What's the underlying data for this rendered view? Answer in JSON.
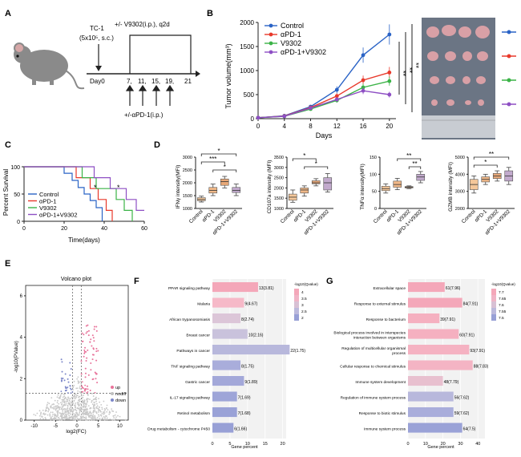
{
  "panels": {
    "A": {
      "label": "A",
      "tc1": "TC-1",
      "dose": "(5x10⁵, s.c.)",
      "treat_v9302": "+/- V9302(i.p.), q2d",
      "day0": "Day0",
      "days": [
        "7,",
        "11,",
        "15,",
        "19,",
        "21"
      ],
      "treat_apd1": "+/-αPD-1(i.p.)"
    },
    "B": {
      "label": "B",
      "ylabel": "Tumor volume(mm³)",
      "xlabel": "Days",
      "sig": [
        "**",
        "**",
        "**"
      ]
    },
    "C": {
      "label": "C",
      "ylabel": "Percent Survival",
      "xlabel": "Time(days)",
      "sig": [
        "*",
        "*"
      ]
    },
    "D": {
      "label": "D",
      "plots": [
        {
          "ylabel": "IFNγ intensity(MFI)",
          "sig": [
            "*",
            "***",
            "*"
          ]
        },
        {
          "ylabel": "CD107a intensity (MFI)",
          "sig": [
            "*",
            "*"
          ]
        },
        {
          "ylabel": "TNFα intensity(MFI)",
          "sig": [
            "**",
            "**"
          ]
        },
        {
          "ylabel": "GZMB intensity (MFI)",
          "sig": [
            "*",
            "**"
          ]
        }
      ],
      "groups": [
        "Control",
        "αPD-1",
        "V9302",
        "αPD-1+V9302"
      ]
    },
    "E": {
      "label": "E",
      "title": "Volcano plot",
      "xlabel": "log2(FC)",
      "ylabel": "-log10(PValue)",
      "legend": [
        "up",
        "nodiff",
        "down"
      ]
    },
    "F": {
      "label": "F",
      "xlabel": "Gene percent",
      "legend_title": "-log10(Qvalue)",
      "legend_ticks": [
        "4",
        "3.5",
        "3",
        "2.5",
        "2"
      ]
    },
    "G": {
      "label": "G",
      "xlabel": "Gene percent",
      "legend_title": "-log10(Qvalue)",
      "legend_ticks": [
        "7.7",
        "7.65",
        "7.6",
        "7.55",
        "7.5"
      ]
    }
  },
  "chart_data": [
    {
      "type": "line",
      "title": "",
      "xlabel": "Days",
      "ylabel": "Tumor volume(mm³)",
      "x": [
        0,
        4,
        8,
        12,
        16,
        20
      ],
      "xlim": [
        0,
        21
      ],
      "ylim": [
        0,
        2000
      ],
      "xticks": [
        0,
        4,
        8,
        12,
        16,
        20
      ],
      "yticks": [
        0,
        500,
        1000,
        1500,
        2000
      ],
      "legend": "top-left",
      "series": [
        {
          "name": "Control",
          "color": "#2a63c6",
          "values": [
            20,
            60,
            250,
            600,
            1320,
            1750
          ]
        },
        {
          "name": "αPD-1",
          "color": "#e8392b",
          "values": [
            20,
            55,
            230,
            470,
            800,
            960
          ]
        },
        {
          "name": "V9302",
          "color": "#3bb347",
          "values": [
            20,
            50,
            200,
            380,
            650,
            780
          ]
        },
        {
          "name": "αPD-1+V9302",
          "color": "#8e4fc4",
          "values": [
            20,
            50,
            220,
            400,
            580,
            500
          ]
        }
      ]
    },
    {
      "type": "line",
      "title": "",
      "xlabel": "Time(days)",
      "ylabel": "Percent Survival",
      "xlim": [
        0,
        60
      ],
      "ylim": [
        0,
        100
      ],
      "xticks": [
        0,
        20,
        40,
        60
      ],
      "yticks": [
        0,
        50,
        100
      ],
      "legend": "bottom-left",
      "series": [
        {
          "name": "Control",
          "color": "#2a63c6",
          "steps": [
            [
              0,
              100
            ],
            [
              20,
              100
            ],
            [
              20,
              88
            ],
            [
              24,
              88
            ],
            [
              24,
              75
            ],
            [
              27,
              75
            ],
            [
              27,
              62
            ],
            [
              30,
              62
            ],
            [
              30,
              50
            ],
            [
              33,
              50
            ],
            [
              33,
              38
            ],
            [
              36,
              38
            ],
            [
              36,
              25
            ],
            [
              39,
              25
            ],
            [
              39,
              0
            ]
          ]
        },
        {
          "name": "αPD-1",
          "color": "#e8392b",
          "steps": [
            [
              0,
              100
            ],
            [
              26,
              100
            ],
            [
              26,
              80
            ],
            [
              33,
              80
            ],
            [
              33,
              60
            ],
            [
              37,
              60
            ],
            [
              37,
              40
            ],
            [
              41,
              40
            ],
            [
              41,
              20
            ],
            [
              44,
              20
            ],
            [
              44,
              0
            ]
          ]
        },
        {
          "name": "V9302",
          "color": "#3bb347",
          "steps": [
            [
              0,
              100
            ],
            [
              29,
              100
            ],
            [
              29,
              80
            ],
            [
              36,
              80
            ],
            [
              36,
              60
            ],
            [
              46,
              60
            ],
            [
              46,
              40
            ],
            [
              50,
              40
            ],
            [
              50,
              20
            ],
            [
              54,
              20
            ],
            [
              54,
              0
            ]
          ]
        },
        {
          "name": "αPD-1+V9302",
          "color": "#8e4fc4",
          "steps": [
            [
              0,
              100
            ],
            [
              35,
              100
            ],
            [
              35,
              80
            ],
            [
              43,
              80
            ],
            [
              43,
              60
            ],
            [
              51,
              60
            ],
            [
              51,
              40
            ],
            [
              56,
              40
            ],
            [
              56,
              20
            ],
            [
              60,
              20
            ]
          ]
        }
      ]
    },
    {
      "type": "box",
      "ylabel": "IFNγ intensity(MFI)",
      "categories": [
        "Control",
        "αPD-1",
        "V9302",
        "αPD-1+V9302"
      ],
      "yticks": [
        1000,
        1500,
        2000,
        2500,
        3000
      ],
      "ylim": [
        1000,
        3000
      ],
      "boxes": [
        [
          1250,
          1300,
          1350,
          1420,
          1480
        ],
        [
          1500,
          1600,
          1700,
          1820,
          1950
        ],
        [
          1800,
          1900,
          2050,
          2150,
          2250
        ],
        [
          1500,
          1620,
          1700,
          1820,
          1950
        ]
      ]
    },
    {
      "type": "box",
      "ylabel": "CD107a intensity (MFI)",
      "categories": [
        "Control",
        "αPD-1",
        "V9302",
        "αPD-1+V9302"
      ],
      "yticks": [
        1000,
        1500,
        2000,
        2500,
        3000,
        3500
      ],
      "ylim": [
        1000,
        3500
      ],
      "boxes": [
        [
          1300,
          1400,
          1550,
          1700,
          1900
        ],
        [
          1600,
          1750,
          1900,
          2000,
          2100
        ],
        [
          2100,
          2200,
          2250,
          2350,
          2450
        ],
        [
          1800,
          1900,
          2250,
          2500,
          2700
        ]
      ]
    },
    {
      "type": "box",
      "ylabel": "TNFα intensity(MFI)",
      "categories": [
        "Control",
        "αPD-1",
        "V9302",
        "αPD-1+V9302"
      ],
      "yticks": [
        0,
        50,
        100,
        150
      ],
      "ylim": [
        0,
        150
      ],
      "boxes": [
        [
          45,
          52,
          58,
          65,
          72
        ],
        [
          55,
          62,
          70,
          80,
          88
        ],
        [
          58,
          60,
          62,
          64,
          66
        ],
        [
          75,
          82,
          92,
          100,
          108
        ]
      ]
    },
    {
      "type": "box",
      "ylabel": "GZMB intensity (MFI)",
      "categories": [
        "Control",
        "αPD-1",
        "V9302",
        "αPD-1+V9302"
      ],
      "yticks": [
        2000,
        3000,
        4000,
        5000
      ],
      "ylim": [
        2000,
        5000
      ],
      "boxes": [
        [
          2900,
          3100,
          3400,
          3700,
          3900
        ],
        [
          3400,
          3550,
          3700,
          3850,
          4000
        ],
        [
          3600,
          3750,
          3900,
          4050,
          4200
        ],
        [
          3400,
          3600,
          3900,
          4200,
          4400
        ]
      ]
    },
    {
      "type": "scatter",
      "title": "Volcano plot",
      "xlabel": "log2(FC)",
      "ylabel": "-log10(PValue)",
      "xticks": [
        -10,
        -5,
        0,
        5,
        10
      ],
      "yticks": [
        0,
        2,
        4,
        6
      ],
      "xlim": [
        -12,
        12
      ],
      "ylim": [
        0,
        6.5
      ],
      "legend": "top-right"
    },
    {
      "type": "bar",
      "orientation": "horizontal",
      "xlabel": "Gene percent",
      "xticks": [
        0,
        5,
        10,
        15,
        20
      ],
      "xlim": [
        0,
        21
      ],
      "categories": [
        "PPAR signaling pathway",
        "Malaria",
        "African trypanosomiasis",
        "Breast cancer",
        "Pathways in cancer",
        "TNF signaling pathway",
        "Gastric cancer",
        "IL-17 signaling pathway",
        "Retinol metabolism",
        "Drug metabolism - cytochrome P450"
      ],
      "values": [
        13,
        9,
        8,
        10,
        22,
        8,
        9,
        7,
        7,
        6
      ],
      "data_labels": [
        "13(3.81)",
        "9(4.67)",
        "8(2.74)",
        "10(2.16)",
        "22(1.75)",
        "8(1.75)",
        "9(1.89)",
        "7(1.69)",
        "7(1.68)",
        "6(1.66)"
      ],
      "colors": [
        "#f4a7b9",
        "#f6b9c8",
        "#dcc6d8",
        "#c9c2dc",
        "#b8b8dc",
        "#a9addb",
        "#a3a8d9",
        "#9ea5d8",
        "#9aa2d7",
        "#98a0d6"
      ]
    },
    {
      "type": "bar",
      "orientation": "horizontal",
      "xlabel": "Gene percent",
      "xticks": [
        0,
        10,
        20,
        30,
        40
      ],
      "xlim": [
        0,
        44
      ],
      "categories": [
        "Extracellular space",
        "Response to external stimulus",
        "Response to bacterium",
        "Biological process involved in interspecies interaction between organisms",
        "Regulation of multicellular organismal process",
        "Cellular response to chemical stimulus",
        "Immune system development",
        "Regulation of immune system process",
        "Response to biotic stimulus",
        "Immune system process"
      ],
      "values": [
        21,
        31,
        18,
        29,
        35,
        37,
        20,
        26,
        26,
        31
      ],
      "data_labels": [
        "61(7.96)",
        "84(7.91)",
        "39(7.91)",
        "60(7.91)",
        "93(7.91)",
        "88(7.83)",
        "48(7.79)",
        "56(7.62)",
        "59(7.62)",
        "64(7.5)"
      ],
      "colors": [
        "#f4a7b9",
        "#f4a7b9",
        "#f5b0c0",
        "#f5b0c0",
        "#f5b2c2",
        "#f4b4c4",
        "#e8c0cf",
        "#b8b8dc",
        "#a9addb",
        "#9aa2d7"
      ]
    }
  ]
}
